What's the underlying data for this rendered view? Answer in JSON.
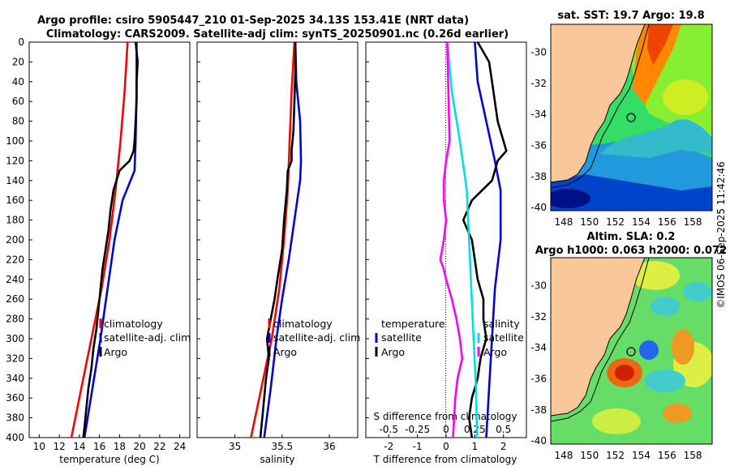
{
  "figure": {
    "title_line1": "Argo profile: csiro 5905447_210 01-Sep-2025 34.13S 153.41E (NRT data)",
    "title_line2": "Climatology: CARS2009. Satellite-adj clim: synTS_20250901.nc (0.26d earlier)",
    "watermark": "©IMOS 06-Sep-2025 11:42:46"
  },
  "colors": {
    "climatology": "#ff0000",
    "satellite": "#0000dd",
    "argo": "#000000",
    "salinity_sat": "#00e0e0",
    "salinity_argo": "#ff00ff",
    "land": "#f9c79a"
  },
  "chart_data": [
    {
      "id": "temperature",
      "type": "line",
      "xlabel": "temperature (deg C)",
      "ylabel": "",
      "xlim": [
        9,
        25
      ],
      "ylim": [
        400,
        0
      ],
      "xticks": [
        "10",
        "12",
        "14",
        "16",
        "18",
        "20",
        "22",
        "24"
      ],
      "yticks": [
        "0",
        "20",
        "40",
        "60",
        "80",
        "100",
        "120",
        "140",
        "160",
        "180",
        "200",
        "220",
        "240",
        "260",
        "280",
        "300",
        "320",
        "340",
        "360",
        "380",
        "400"
      ],
      "legend": [
        "climatology",
        "satellite-adj. clim",
        "Argo"
      ],
      "series": [
        {
          "name": "climatology",
          "depth": [
            0,
            50,
            100,
            150,
            200,
            250,
            300,
            350,
            400
          ],
          "values": [
            18.8,
            18.5,
            18.1,
            17.6,
            17.0,
            16.2,
            15.2,
            14.2,
            13.2
          ]
        },
        {
          "name": "satellite-adj. clim",
          "depth": [
            0,
            50,
            100,
            130,
            160,
            200,
            250,
            300,
            350,
            400
          ],
          "values": [
            19.7,
            19.7,
            19.6,
            19.5,
            18.3,
            17.5,
            16.8,
            16.1,
            15.3,
            14.5
          ]
        },
        {
          "name": "Argo",
          "depth": [
            0,
            20,
            40,
            60,
            80,
            100,
            110,
            120,
            130,
            150,
            170,
            190,
            210,
            230,
            250,
            270,
            290,
            310,
            330,
            350,
            370,
            390,
            400
          ],
          "values": [
            19.6,
            19.8,
            19.7,
            19.7,
            19.6,
            19.5,
            19.4,
            19.0,
            18.0,
            17.4,
            17.1,
            16.9,
            16.6,
            16.3,
            16.1,
            15.9,
            15.7,
            15.4,
            15.2,
            14.9,
            14.7,
            14.5,
            14.4
          ]
        }
      ]
    },
    {
      "id": "salinity",
      "type": "line",
      "xlabel": "salinity",
      "ylabel": "",
      "xlim": [
        34.6,
        36.3
      ],
      "ylim": [
        400,
        0
      ],
      "xticks": [
        "35",
        "35.5",
        "36"
      ],
      "legend": [
        "climatology",
        "satellite-adj. clim",
        "Argo"
      ],
      "series": [
        {
          "name": "climatology",
          "depth": [
            0,
            50,
            100,
            150,
            200,
            250,
            300,
            350,
            400
          ],
          "values": [
            35.63,
            35.6,
            35.58,
            35.56,
            35.52,
            35.47,
            35.39,
            35.28,
            35.17
          ]
        },
        {
          "name": "satellite-adj. clim",
          "depth": [
            0,
            40,
            80,
            120,
            140,
            180,
            220,
            260,
            300,
            350,
            400
          ],
          "values": [
            35.64,
            35.65,
            35.69,
            35.7,
            35.69,
            35.63,
            35.57,
            35.5,
            35.44,
            35.38,
            35.31
          ]
        },
        {
          "name": "Argo",
          "depth": [
            0,
            30,
            60,
            90,
            110,
            120,
            130,
            150,
            180,
            210,
            240,
            260,
            280,
            300,
            320,
            340,
            360,
            380,
            400
          ],
          "values": [
            35.64,
            35.64,
            35.63,
            35.62,
            35.6,
            35.6,
            35.56,
            35.55,
            35.52,
            35.5,
            35.45,
            35.42,
            35.38,
            35.34,
            35.36,
            35.33,
            35.31,
            35.29,
            35.27
          ]
        }
      ]
    },
    {
      "id": "difference",
      "type": "line",
      "xlabel": "T difference from climatology",
      "top_xlabel": "S difference from climatology",
      "xlim": [
        -2.8,
        2.8
      ],
      "ylim": [
        400,
        0
      ],
      "xticks": [
        "-2",
        "-1",
        "0",
        "1",
        "2"
      ],
      "top_xticks": [
        "-0.5",
        "-0.25",
        "0",
        "0.25",
        "0.5"
      ],
      "legend_left_title": "temperature",
      "legend_right_title": "salinity",
      "legend": [
        "satellite",
        "Argo",
        "satellite",
        "Argo"
      ],
      "series": [
        {
          "name": "T satellite",
          "depth": [
            0,
            40,
            80,
            120,
            150,
            200,
            250,
            300,
            350,
            400
          ],
          "values": [
            1.0,
            1.1,
            1.4,
            1.7,
            1.9,
            1.9,
            1.7,
            1.6,
            1.5,
            1.4
          ]
        },
        {
          "name": "T Argo",
          "depth": [
            0,
            20,
            40,
            60,
            80,
            100,
            110,
            120,
            140,
            160,
            180,
            200,
            220,
            240,
            260,
            280,
            300,
            320,
            340,
            360,
            380,
            400
          ],
          "values": [
            1.1,
            1.5,
            1.6,
            1.7,
            1.8,
            2.0,
            2.1,
            1.8,
            1.6,
            0.9,
            0.6,
            0.9,
            1.0,
            1.1,
            1.3,
            1.3,
            1.4,
            1.2,
            1.1,
            0.9,
            0.8,
            0.9
          ]
        },
        {
          "name": "S satellite",
          "depth": [
            0,
            50,
            100,
            150,
            200,
            250,
            300,
            350,
            400
          ],
          "values": [
            0.01,
            0.05,
            0.12,
            0.18,
            0.2,
            0.22,
            0.24,
            0.26,
            0.27
          ]
        },
        {
          "name": "S Argo",
          "depth": [
            0,
            50,
            100,
            120,
            140,
            160,
            180,
            200,
            220,
            230,
            240,
            260,
            280,
            300,
            320,
            340,
            360,
            380,
            400
          ],
          "values": [
            0.01,
            0.02,
            0.03,
            0.0,
            -0.02,
            -0.02,
            0.0,
            -0.02,
            -0.05,
            -0.02,
            0.0,
            0.05,
            0.09,
            0.12,
            0.14,
            0.1,
            0.08,
            0.07,
            0.06
          ]
        }
      ]
    },
    {
      "id": "sst_map",
      "type": "heatmap",
      "title": "sat. SST: 19.7 Argo: 19.8",
      "xticks": [
        "148",
        "150",
        "152",
        "154",
        "156",
        "158"
      ],
      "yticks": [
        "-30",
        "-32",
        "-34",
        "-36",
        "-38",
        "-40"
      ],
      "xlim": [
        147,
        159.5
      ],
      "ylim": [
        -40.2,
        -28.2
      ],
      "argo_position": [
        153.41,
        -34.13
      ]
    },
    {
      "id": "sla_map",
      "type": "heatmap",
      "title_line1": "Altim. SLA: 0.2",
      "title_line2": "Argo h1000: 0.063 h2000: 0.072",
      "xticks": [
        "148",
        "150",
        "152",
        "154",
        "156",
        "158"
      ],
      "yticks": [
        "-30",
        "-32",
        "-34",
        "-36",
        "-38",
        "-40"
      ],
      "xlim": [
        147,
        159.5
      ],
      "ylim": [
        -40.2,
        -28.2
      ],
      "argo_position": [
        153.41,
        -34.13
      ]
    }
  ]
}
